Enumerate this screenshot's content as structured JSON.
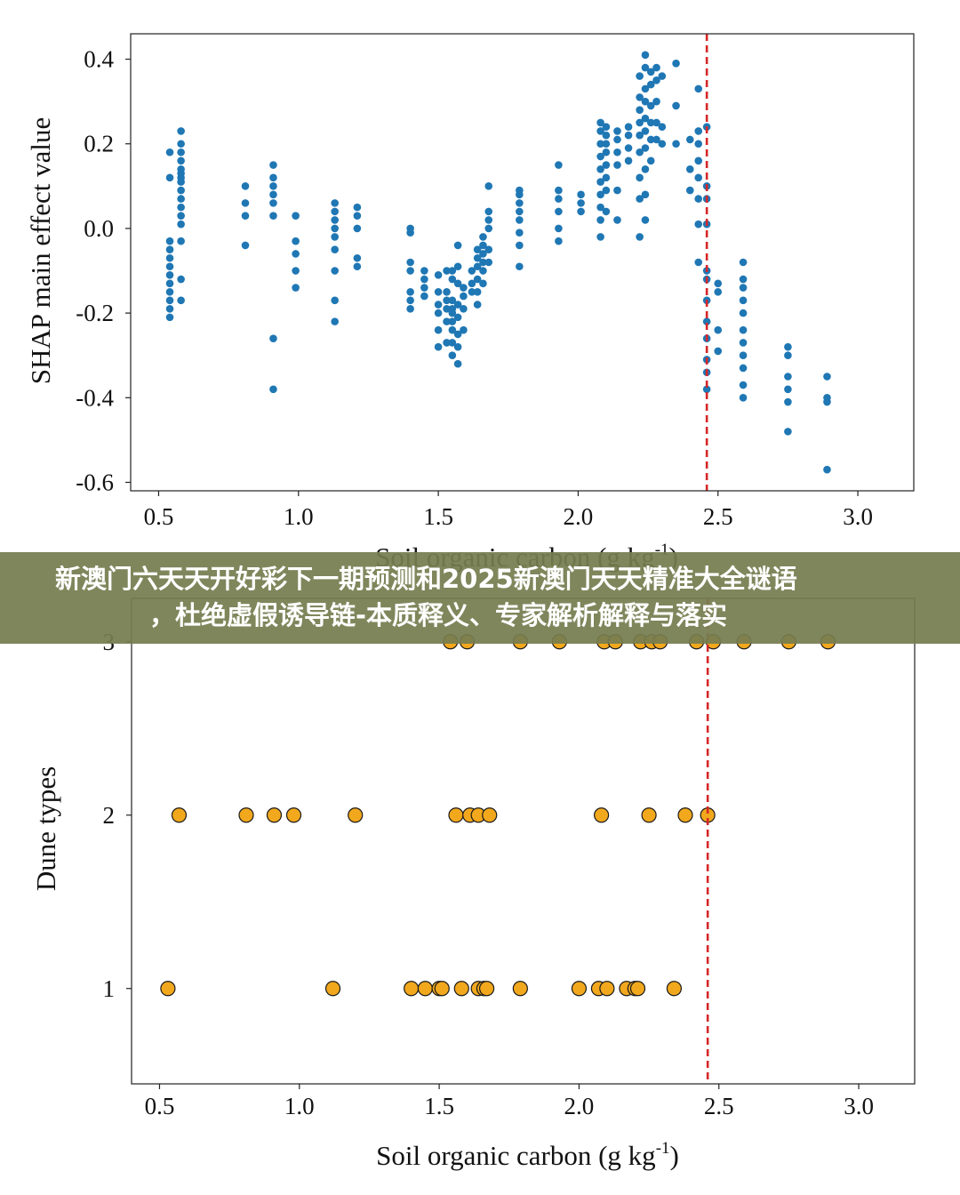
{
  "banner": {
    "line1": "新澳门六天天开好彩下一期预测和2025新澳门天天精准大全谜语",
    "line2": "，杜绝虚假诱导链-本质释义、专家解析解释与落实",
    "background": "#767d50"
  },
  "chart_data": [
    {
      "type": "scatter",
      "xlabel": "Soil organic carbon (g kg-1)",
      "xlabel_main": "Soil organic carbon (g kg",
      "xlabel_sup": "-1",
      "xlabel_close": ")",
      "ylabel": "SHAP main effect value",
      "xlim": [
        0.4,
        3.2
      ],
      "ylim": [
        -0.62,
        0.46
      ],
      "xticks": [
        "0.5",
        "1.0",
        "1.5",
        "2.0",
        "2.5",
        "3.0"
      ],
      "xtick_values": [
        0.5,
        1.0,
        1.5,
        2.0,
        2.5,
        3.0
      ],
      "yticks": [
        "0.4",
        "0.2",
        "0.0",
        "-0.2",
        "-0.4",
        "-0.6"
      ],
      "ytick_values": [
        0.4,
        0.2,
        0.0,
        -0.2,
        -0.4,
        -0.6
      ],
      "vline_x": 2.46,
      "vline_color": "#d62728",
      "point_color": "#1f77b4",
      "grid": false,
      "clusters": [
        {
          "x": 0.54,
          "y": [
            -0.21,
            -0.19,
            -0.17,
            -0.15,
            -0.13,
            -0.11,
            -0.09,
            -0.07,
            -0.05,
            -0.03,
            0.12,
            0.18
          ]
        },
        {
          "x": 0.58,
          "y": [
            -0.17,
            -0.12,
            -0.03,
            0.01,
            0.03,
            0.05,
            0.07,
            0.09,
            0.11,
            0.12,
            0.13,
            0.14,
            0.16,
            0.18,
            0.2,
            0.23
          ]
        },
        {
          "x": 0.81,
          "y": [
            -0.04,
            0.03,
            0.06,
            0.1
          ]
        },
        {
          "x": 0.91,
          "y": [
            -0.38,
            -0.26,
            0.03,
            0.06,
            0.08,
            0.1,
            0.12,
            0.15
          ]
        },
        {
          "x": 0.99,
          "y": [
            -0.14,
            -0.1,
            -0.06,
            -0.03,
            0.03
          ]
        },
        {
          "x": 1.13,
          "y": [
            -0.22,
            -0.17,
            -0.1,
            -0.05,
            -0.02,
            0.0,
            0.02,
            0.04,
            0.06
          ]
        },
        {
          "x": 1.21,
          "y": [
            -0.09,
            -0.07,
            0.0,
            0.03,
            0.05
          ]
        },
        {
          "x": 1.4,
          "y": [
            -0.19,
            -0.17,
            -0.15,
            -0.1,
            -0.08,
            -0.01,
            0.0
          ]
        },
        {
          "x": 1.45,
          "y": [
            -0.16,
            -0.14,
            -0.12,
            -0.1
          ]
        },
        {
          "x": 1.5,
          "y": [
            -0.28,
            -0.24,
            -0.2,
            -0.18,
            -0.15,
            -0.11
          ]
        },
        {
          "x": 1.53,
          "y": [
            -0.27,
            -0.22,
            -0.19,
            -0.17,
            -0.15,
            -0.1
          ]
        },
        {
          "x": 1.55,
          "y": [
            -0.3,
            -0.27,
            -0.24,
            -0.22,
            -0.2,
            -0.19,
            -0.17,
            -0.12,
            -0.1
          ]
        },
        {
          "x": 1.57,
          "y": [
            -0.32,
            -0.28,
            -0.25,
            -0.21,
            -0.18,
            -0.13,
            -0.09,
            -0.04
          ]
        },
        {
          "x": 1.59,
          "y": [
            -0.24,
            -0.19,
            -0.16,
            -0.14
          ]
        },
        {
          "x": 1.62,
          "y": [
            -0.15,
            -0.13,
            -0.1
          ]
        },
        {
          "x": 1.64,
          "y": [
            -0.18,
            -0.15,
            -0.12,
            -0.09,
            -0.07,
            -0.05
          ]
        },
        {
          "x": 1.66,
          "y": [
            -0.13,
            -0.1,
            -0.08,
            -0.06,
            -0.04,
            -0.02
          ]
        },
        {
          "x": 1.68,
          "y": [
            -0.08,
            -0.05,
            0.0,
            0.02,
            0.04,
            0.1
          ]
        },
        {
          "x": 1.79,
          "y": [
            -0.09,
            -0.04,
            -0.01,
            0.02,
            0.04,
            0.06,
            0.08,
            0.09
          ]
        },
        {
          "x": 1.93,
          "y": [
            -0.03,
            0.0,
            0.04,
            0.07,
            0.09,
            0.15
          ]
        },
        {
          "x": 2.01,
          "y": [
            0.04,
            0.06,
            0.08
          ]
        },
        {
          "x": 2.08,
          "y": [
            -0.02,
            0.02,
            0.05,
            0.08,
            0.11,
            0.14,
            0.17,
            0.2,
            0.23,
            0.25
          ]
        },
        {
          "x": 2.1,
          "y": [
            0.04,
            0.09,
            0.12,
            0.15,
            0.18,
            0.2,
            0.22,
            0.24
          ]
        },
        {
          "x": 2.14,
          "y": [
            0.02,
            0.09,
            0.15,
            0.18,
            0.21,
            0.23
          ]
        },
        {
          "x": 2.18,
          "y": [
            0.16,
            0.19,
            0.22,
            0.24
          ]
        },
        {
          "x": 2.22,
          "y": [
            -0.02,
            0.07,
            0.12,
            0.18,
            0.22,
            0.25,
            0.28,
            0.31,
            0.36
          ]
        },
        {
          "x": 2.24,
          "y": [
            0.02,
            0.08,
            0.14,
            0.19,
            0.23,
            0.26,
            0.3,
            0.33,
            0.38,
            0.41
          ]
        },
        {
          "x": 2.26,
          "y": [
            0.16,
            0.21,
            0.25,
            0.29,
            0.34,
            0.37
          ]
        },
        {
          "x": 2.28,
          "y": [
            0.21,
            0.25,
            0.3,
            0.35,
            0.38
          ]
        },
        {
          "x": 2.3,
          "y": [
            0.2,
            0.24,
            0.36
          ]
        },
        {
          "x": 2.35,
          "y": [
            0.2,
            0.29,
            0.39
          ]
        },
        {
          "x": 2.4,
          "y": [
            0.09,
            0.14,
            0.21
          ]
        },
        {
          "x": 2.43,
          "y": [
            -0.08,
            0.01,
            0.07,
            0.12,
            0.16,
            0.2,
            0.23,
            0.33
          ]
        },
        {
          "x": 2.46,
          "y": [
            -0.38,
            -0.34,
            -0.31,
            -0.26,
            -0.22,
            -0.17,
            -0.12,
            -0.1,
            0.01,
            0.07,
            0.1,
            0.24
          ]
        },
        {
          "x": 2.5,
          "y": [
            -0.29,
            -0.24,
            -0.15,
            -0.13
          ]
        },
        {
          "x": 2.59,
          "y": [
            -0.4,
            -0.37,
            -0.33,
            -0.3,
            -0.27,
            -0.24,
            -0.2,
            -0.17,
            -0.14,
            -0.12,
            -0.08
          ]
        },
        {
          "x": 2.75,
          "y": [
            -0.48,
            -0.41,
            -0.38,
            -0.35,
            -0.3,
            -0.28
          ]
        },
        {
          "x": 2.89,
          "y": [
            -0.57,
            -0.41,
            -0.4,
            -0.35
          ]
        }
      ]
    },
    {
      "type": "scatter",
      "xlabel": "Soil organic carbon (g kg-1)",
      "xlabel_main": "Soil organic carbon (g kg",
      "xlabel_sup": "-1",
      "xlabel_close": ")",
      "ylabel": "Dune types",
      "xlim": [
        0.4,
        3.2
      ],
      "ylim": [
        0.45,
        3.25
      ],
      "xticks": [
        "0.5",
        "1.0",
        "1.5",
        "2.0",
        "2.5",
        "3.0"
      ],
      "xtick_values": [
        0.5,
        1.0,
        1.5,
        2.0,
        2.5,
        3.0
      ],
      "yticks": [
        "3",
        "2",
        "1"
      ],
      "ytick_values": [
        3,
        2,
        1
      ],
      "vline_x": 2.46,
      "vline_color": "#d62728",
      "point_color": "#f2a81d",
      "grid": false,
      "points": [
        {
          "x": 1.54,
          "y": 3
        },
        {
          "x": 1.6,
          "y": 3
        },
        {
          "x": 1.79,
          "y": 3
        },
        {
          "x": 1.93,
          "y": 3
        },
        {
          "x": 2.09,
          "y": 3
        },
        {
          "x": 2.13,
          "y": 3
        },
        {
          "x": 2.22,
          "y": 3
        },
        {
          "x": 2.26,
          "y": 3
        },
        {
          "x": 2.29,
          "y": 3
        },
        {
          "x": 2.42,
          "y": 3
        },
        {
          "x": 2.48,
          "y": 3
        },
        {
          "x": 2.59,
          "y": 3
        },
        {
          "x": 2.75,
          "y": 3
        },
        {
          "x": 2.89,
          "y": 3
        },
        {
          "x": 0.57,
          "y": 2
        },
        {
          "x": 0.81,
          "y": 2
        },
        {
          "x": 0.91,
          "y": 2
        },
        {
          "x": 0.98,
          "y": 2
        },
        {
          "x": 1.2,
          "y": 2
        },
        {
          "x": 1.56,
          "y": 2
        },
        {
          "x": 1.61,
          "y": 2
        },
        {
          "x": 1.64,
          "y": 2
        },
        {
          "x": 1.68,
          "y": 2
        },
        {
          "x": 2.08,
          "y": 2
        },
        {
          "x": 2.25,
          "y": 2
        },
        {
          "x": 2.38,
          "y": 2
        },
        {
          "x": 2.46,
          "y": 2
        },
        {
          "x": 0.53,
          "y": 1
        },
        {
          "x": 1.12,
          "y": 1
        },
        {
          "x": 1.4,
          "y": 1
        },
        {
          "x": 1.45,
          "y": 1
        },
        {
          "x": 1.5,
          "y": 1
        },
        {
          "x": 1.51,
          "y": 1
        },
        {
          "x": 1.58,
          "y": 1
        },
        {
          "x": 1.64,
          "y": 1
        },
        {
          "x": 1.66,
          "y": 1
        },
        {
          "x": 1.67,
          "y": 1
        },
        {
          "x": 1.79,
          "y": 1
        },
        {
          "x": 2.0,
          "y": 1
        },
        {
          "x": 2.07,
          "y": 1
        },
        {
          "x": 2.1,
          "y": 1
        },
        {
          "x": 2.17,
          "y": 1
        },
        {
          "x": 2.2,
          "y": 1
        },
        {
          "x": 2.21,
          "y": 1
        },
        {
          "x": 2.34,
          "y": 1
        }
      ]
    }
  ]
}
